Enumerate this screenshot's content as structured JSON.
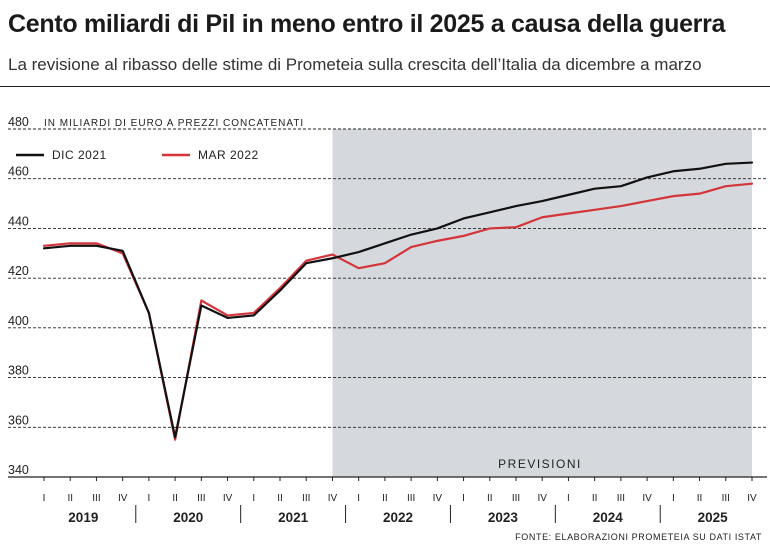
{
  "header": {
    "title": "Cento miliardi di Pil in meno entro il 2025 a causa della guerra",
    "subtitle": "La revisione al ribasso delle stime di Prometeia sulla crescita dell’Italia da dicembre a marzo"
  },
  "chart_data": {
    "type": "line",
    "title": "Cento miliardi di Pil in meno entro il 2025 a causa della guerra",
    "ylabel": "IN MILIARDI DI EURO A PREZZI CONCATENATI",
    "ylim": [
      340,
      480
    ],
    "yticks": [
      340,
      360,
      380,
      400,
      420,
      440,
      460,
      480
    ],
    "x": [
      "2019 I",
      "2019 II",
      "2019 III",
      "2019 IV",
      "2020 I",
      "2020 II",
      "2020 III",
      "2020 IV",
      "2021 I",
      "2021 II",
      "2021 III",
      "2021 IV",
      "2022 I",
      "2022 II",
      "2022 III",
      "2022 IV",
      "2023 I",
      "2023 II",
      "2023 III",
      "2023 IV",
      "2024 I",
      "2024 II",
      "2024 III",
      "2024 IV",
      "2025 I",
      "2025 II",
      "2025 III",
      "2025 IV"
    ],
    "quarter_labels": [
      "I",
      "II",
      "III",
      "IV"
    ],
    "years": [
      "2019",
      "2020",
      "2021",
      "2022",
      "2023",
      "2024",
      "2025"
    ],
    "series": [
      {
        "name": "DIC 2021",
        "color": "#111111",
        "values": [
          432,
          433,
          433,
          431,
          406,
          356,
          409,
          404,
          405,
          415,
          426,
          428,
          430.5,
          434,
          437.5,
          440,
          444,
          446.5,
          449,
          451,
          453.5,
          456,
          457,
          460.5,
          463,
          464,
          466,
          466.5
        ]
      },
      {
        "name": "MAR 2022",
        "color": "#d3353a",
        "values": [
          433,
          434,
          434,
          430,
          406,
          355,
          411,
          405,
          406,
          416,
          427,
          429.5,
          424,
          426,
          432.5,
          435,
          437,
          440,
          440.5,
          444.5,
          446,
          447.5,
          449,
          451,
          453,
          454,
          457,
          458
        ]
      }
    ],
    "forecast_label": "PREVISIONI",
    "forecast_start": "2021 IV",
    "legend_position": "top-left",
    "grid": true,
    "source": "FONTE: ELABORAZIONI PROMETEIA SU DATI ISTAT",
    "colors": {
      "forecast_bg": "#d5d9de",
      "grid": "#222222"
    }
  }
}
